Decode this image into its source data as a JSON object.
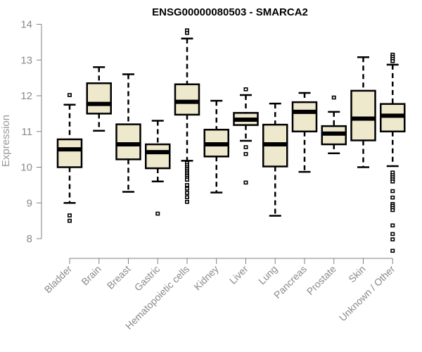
{
  "chart_data": {
    "type": "boxplot",
    "title": "ENSG00000080503 - SMARCA2",
    "xlabel": "",
    "ylabel": "Expression",
    "ylim": [
      7.9,
      14.0
    ],
    "yticks": [
      8,
      9,
      10,
      11,
      12,
      13,
      14
    ],
    "grid": false,
    "legend": "none",
    "colors": {
      "box_fill": "#EEE8CD",
      "box_stroke": "#000000",
      "axis": "#808080",
      "tick_text": "#8a8a8a"
    },
    "categories": [
      "Bladder",
      "Brain",
      "Breast",
      "Gastric",
      "Hematopoietic cells",
      "Kidney",
      "Liver",
      "Lung",
      "Pancreas",
      "Prostate",
      "Skin",
      "Unknown / Other"
    ],
    "series": [
      {
        "name": "Bladder",
        "whisker_low": 9.0,
        "q1": 10.0,
        "median": 10.5,
        "q3": 10.78,
        "whisker_high": 11.75,
        "outliers": [
          12.02,
          8.65,
          8.5
        ]
      },
      {
        "name": "Brain",
        "whisker_low": 11.02,
        "q1": 11.5,
        "median": 11.77,
        "q3": 12.35,
        "whisker_high": 12.8,
        "outliers": []
      },
      {
        "name": "Breast",
        "whisker_low": 9.31,
        "q1": 10.22,
        "median": 10.64,
        "q3": 11.2,
        "whisker_high": 12.6,
        "outliers": []
      },
      {
        "name": "Gastric",
        "whisker_low": 9.6,
        "q1": 9.97,
        "median": 10.42,
        "q3": 10.64,
        "whisker_high": 11.3,
        "outliers": [
          8.7
        ]
      },
      {
        "name": "Hematopoietic cells",
        "whisker_low": 10.18,
        "q1": 11.47,
        "median": 11.83,
        "q3": 12.32,
        "whisker_high": 13.6,
        "outliers": [
          13.83,
          13.76,
          10.12,
          10.06,
          10.0,
          9.95,
          9.9,
          9.85,
          9.8,
          9.75,
          9.7,
          9.65,
          9.5,
          9.4,
          9.28,
          9.16,
          9.03
        ]
      },
      {
        "name": "Kidney",
        "whisker_low": 9.29,
        "q1": 10.3,
        "median": 10.64,
        "q3": 11.05,
        "whisker_high": 11.86,
        "outliers": []
      },
      {
        "name": "Liver",
        "whisker_low": 10.74,
        "q1": 11.18,
        "median": 11.33,
        "q3": 11.52,
        "whisker_high": 12.02,
        "outliers": [
          12.18,
          10.56,
          10.37,
          9.57
        ]
      },
      {
        "name": "Lung",
        "whisker_low": 8.64,
        "q1": 10.02,
        "median": 10.64,
        "q3": 11.19,
        "whisker_high": 11.78,
        "outliers": []
      },
      {
        "name": "Pancreas",
        "whisker_low": 9.87,
        "q1": 11.0,
        "median": 11.55,
        "q3": 11.82,
        "whisker_high": 12.08,
        "outliers": []
      },
      {
        "name": "Prostate",
        "whisker_low": 10.39,
        "q1": 10.64,
        "median": 10.94,
        "q3": 11.15,
        "whisker_high": 11.55,
        "outliers": [
          11.95
        ]
      },
      {
        "name": "Skin",
        "whisker_low": 10.0,
        "q1": 10.75,
        "median": 11.36,
        "q3": 12.14,
        "whisker_high": 13.08,
        "outliers": []
      },
      {
        "name": "Unknown / Other",
        "whisker_low": 10.03,
        "q1": 11.0,
        "median": 11.44,
        "q3": 11.77,
        "whisker_high": 12.87,
        "outliers": [
          13.15,
          13.09,
          13.03,
          12.97,
          9.85,
          9.78,
          9.72,
          9.66,
          9.6,
          9.33,
          9.15,
          8.97,
          8.92,
          8.86,
          8.8,
          8.37,
          8.13,
          7.98,
          7.66
        ]
      }
    ]
  }
}
